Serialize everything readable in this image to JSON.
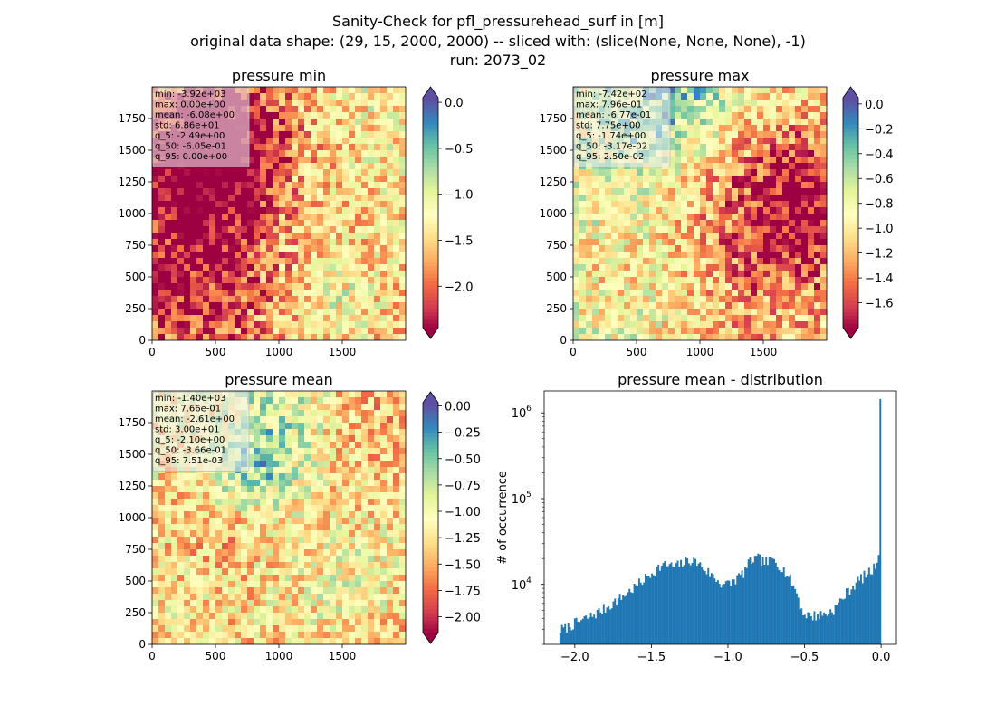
{
  "figure": {
    "suptitle": [
      "Sanity-Check for pfl_pressurehead_surf in [m]",
      "original data shape: (29, 15, 2000, 2000) -- sliced with: (slice(None, None, None), -1)",
      "run: 2073_02"
    ]
  },
  "chart_data": [
    {
      "type": "heatmap",
      "title": "pressure min",
      "x_ticks": [
        "0",
        "500",
        "1000",
        "1500"
      ],
      "y_ticks": [
        "0",
        "250",
        "500",
        "750",
        "1000",
        "1250",
        "1500",
        "1750"
      ],
      "xlim": [
        0,
        2000
      ],
      "ylim": [
        0,
        2000
      ],
      "colormap": "Spectral",
      "colorbar": {
        "range": [
          -2.45,
          0.05
        ],
        "ticks": [
          0.0,
          -0.5,
          -1.0,
          -1.5,
          -2.0
        ],
        "tick_labels": [
          "0.0",
          "−0.5",
          "−1.0",
          "−1.5",
          "−2.0"
        ],
        "extend": "both"
      },
      "stats": [
        "min: -3.92e+03",
        "max: 0.00e+00",
        "mean: -6.08e+00",
        "std: 6.86e+01",
        "q_5: -2.49e+00",
        "q_50: -6.05e-01",
        "q_95: 0.00e+00"
      ]
    },
    {
      "type": "heatmap",
      "title": "pressure max",
      "x_ticks": [
        "0",
        "500",
        "1000",
        "1500"
      ],
      "y_ticks": [
        "0",
        "250",
        "500",
        "750",
        "1000",
        "1250",
        "1500",
        "1750"
      ],
      "xlim": [
        0,
        2000
      ],
      "ylim": [
        0,
        2000
      ],
      "colormap": "Spectral",
      "colorbar": {
        "range": [
          -1.8,
          0.05
        ],
        "ticks": [
          0.0,
          -0.2,
          -0.4,
          -0.6,
          -0.8,
          -1.0,
          -1.2,
          -1.4,
          -1.6
        ],
        "tick_labels": [
          "0.0",
          "−0.2",
          "−0.4",
          "−0.6",
          "−0.8",
          "−1.0",
          "−1.2",
          "−1.4",
          "−1.6"
        ],
        "extend": "both"
      },
      "stats": [
        "min: -7.42e+02",
        "max: 7.96e-01",
        "mean: -6.77e-01",
        "std: 7.75e+00",
        "q_5: -1.74e+00",
        "q_50: -3.17e-02",
        "q_95: 2.50e-02"
      ]
    },
    {
      "type": "heatmap",
      "title": "pressure mean",
      "x_ticks": [
        "0",
        "500",
        "1000",
        "1500"
      ],
      "y_ticks": [
        "0",
        "250",
        "500",
        "750",
        "1000",
        "1250",
        "1500",
        "1750"
      ],
      "xlim": [
        0,
        2000
      ],
      "ylim": [
        0,
        2000
      ],
      "colormap": "Spectral",
      "colorbar": {
        "range": [
          -2.15,
          0.03
        ],
        "ticks": [
          0.0,
          -0.25,
          -0.5,
          -0.75,
          -1.0,
          -1.25,
          -1.5,
          -1.75,
          -2.0
        ],
        "tick_labels": [
          "0.00",
          "−0.25",
          "−0.50",
          "−0.75",
          "−1.00",
          "−1.25",
          "−1.50",
          "−1.75",
          "−2.00"
        ],
        "extend": "both"
      },
      "stats": [
        "min: -1.40e+03",
        "max: 7.66e-01",
        "mean: -2.61e+00",
        "std: 3.00e+01",
        "q_5: -2.10e+00",
        "q_50: -3.66e-01",
        "q_95: 7.51e-03"
      ]
    },
    {
      "type": "bar",
      "title": "pressure mean - distribution",
      "ylabel": "# of occurrence",
      "xlabel": "",
      "xlim": [
        -2.2,
        0.1
      ],
      "ylim": [
        2000,
        1800000
      ],
      "yscale": "log",
      "x_ticks": [
        -2.0,
        -1.5,
        -1.0,
        -0.5,
        0.0
      ],
      "x_tick_labels": [
        "−2.0",
        "−1.5",
        "−1.0",
        "−0.5",
        "0.0"
      ],
      "y_ticks": [
        10000,
        100000,
        1000000
      ],
      "y_tick_labels": [
        "10^4",
        "10^5",
        "10^6"
      ],
      "color": "#1f77b4",
      "bins": {
        "start": -2.1,
        "end": 0.0,
        "count": 200
      },
      "profile": [
        [
          -2.1,
          2900
        ],
        [
          -2.05,
          3200
        ],
        [
          -2.0,
          3500
        ],
        [
          -1.9,
          4200
        ],
        [
          -1.8,
          5300
        ],
        [
          -1.7,
          7000
        ],
        [
          -1.6,
          9500
        ],
        [
          -1.5,
          13500
        ],
        [
          -1.45,
          16000
        ],
        [
          -1.4,
          17000
        ],
        [
          -1.35,
          16000
        ],
        [
          -1.3,
          17500
        ],
        [
          -1.25,
          19500
        ],
        [
          -1.2,
          18000
        ],
        [
          -1.15,
          15000
        ],
        [
          -1.1,
          12500
        ],
        [
          -1.05,
          10500
        ],
        [
          -1.0,
          10000
        ],
        [
          -0.95,
          11500
        ],
        [
          -0.9,
          13500
        ],
        [
          -0.85,
          19000
        ],
        [
          -0.8,
          20000
        ],
        [
          -0.75,
          18000
        ],
        [
          -0.7,
          19500
        ],
        [
          -0.65,
          16000
        ],
        [
          -0.6,
          12000
        ],
        [
          -0.55,
          8000
        ],
        [
          -0.52,
          5000
        ],
        [
          -0.5,
          4500
        ],
        [
          -0.45,
          4300
        ],
        [
          -0.4,
          4400
        ],
        [
          -0.35,
          4600
        ],
        [
          -0.3,
          5300
        ],
        [
          -0.25,
          7000
        ],
        [
          -0.2,
          9000
        ],
        [
          -0.15,
          11000
        ],
        [
          -0.1,
          13000
        ],
        [
          -0.05,
          15000
        ],
        [
          -0.02,
          20000
        ],
        [
          -0.01,
          36000
        ],
        [
          0.0,
          1450000
        ]
      ]
    }
  ]
}
